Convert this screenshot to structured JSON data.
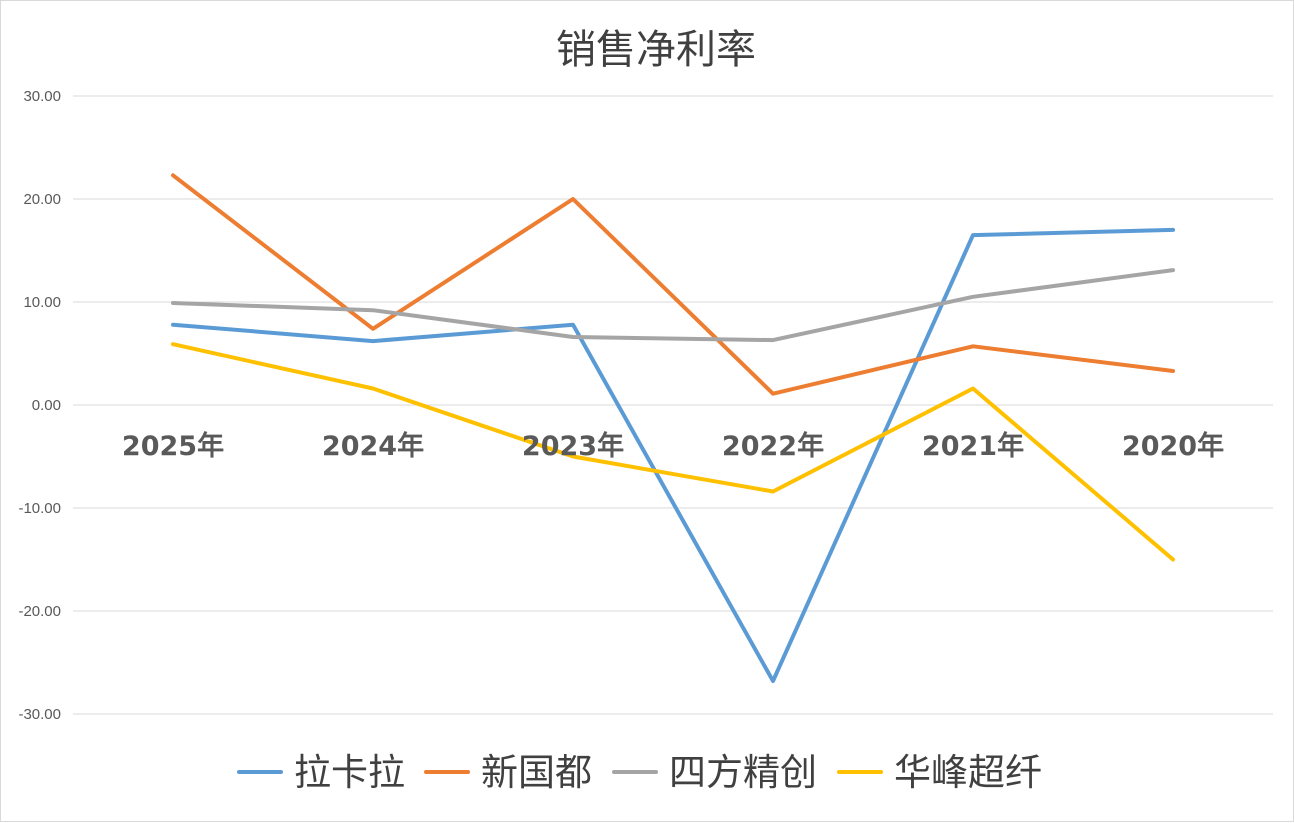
{
  "chart_data": {
    "type": "line",
    "title": "销售净利率",
    "xlabel": "",
    "ylabel": "",
    "categories": [
      "2025年",
      "2024年",
      "2023年",
      "2022年",
      "2021年",
      "2020年"
    ],
    "ylim": [
      -30,
      30
    ],
    "yticks": [
      "30.00",
      "20.00",
      "10.00",
      "0.00",
      "-10.00",
      "-20.00",
      "-30.00"
    ],
    "ytick_values": [
      30,
      20,
      10,
      0,
      -10,
      -20,
      -30
    ],
    "grid": true,
    "legend_position": "bottom",
    "series": [
      {
        "name": "拉卡拉",
        "color": "#5b9bd5",
        "values": [
          7.8,
          6.2,
          7.8,
          -26.8,
          16.5,
          17.0
        ]
      },
      {
        "name": "新国都",
        "color": "#ed7d31",
        "values": [
          22.3,
          7.4,
          20.0,
          1.1,
          5.7,
          3.3
        ]
      },
      {
        "name": "四方精创",
        "color": "#a5a5a5",
        "values": [
          9.9,
          9.2,
          6.6,
          6.3,
          10.5,
          13.1
        ]
      },
      {
        "name": "华峰超纤",
        "color": "#ffc000",
        "values": [
          5.9,
          1.6,
          -5.0,
          -8.4,
          1.6,
          -15.0
        ]
      }
    ]
  }
}
